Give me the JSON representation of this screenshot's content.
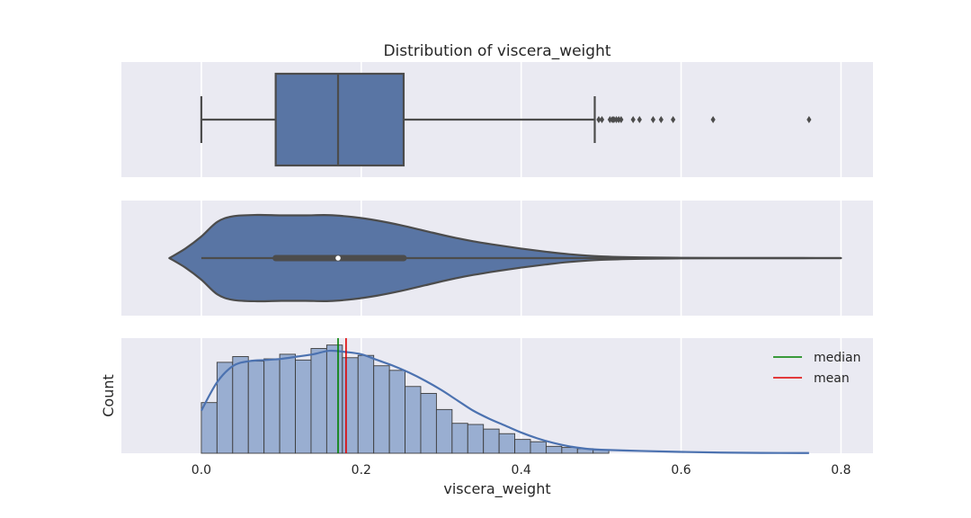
{
  "chart_data": {
    "type": "distribution",
    "title": "Distribution of viscera_weight",
    "xlabel": "viscera_weight",
    "ylabel": "Count",
    "xlim": [
      -0.1,
      0.84
    ],
    "x_ticks": [
      0.0,
      0.2,
      0.4,
      0.6,
      0.8
    ],
    "x_tick_labels": [
      "0.0",
      "0.2",
      "0.4",
      "0.6",
      "0.8"
    ],
    "grid": true,
    "colors": {
      "background": "#eaeaf2",
      "grid": "#ffffff",
      "box_fill": "#5975a4",
      "line": "#4c4c4c",
      "hist_fill": "#99aed1",
      "hist_edge": "#3c3c3c",
      "kde": "#4c72b0",
      "median": "#008000",
      "mean": "#e00000"
    },
    "boxplot": {
      "min": 0.0,
      "q1": 0.093,
      "median": 0.171,
      "q3": 0.253,
      "max_whisker": 0.492,
      "outliers": [
        0.497,
        0.501,
        0.511,
        0.514,
        0.516,
        0.519,
        0.522,
        0.525,
        0.54,
        0.548,
        0.565,
        0.575,
        0.59,
        0.64,
        0.76
      ]
    },
    "violin": {
      "q1": 0.093,
      "median": 0.171,
      "q3": 0.253,
      "whisker_low": 0.0,
      "whisker_high": 0.8,
      "density_x": [
        -0.04,
        -0.02,
        0.0,
        0.02,
        0.04,
        0.07,
        0.1,
        0.13,
        0.16,
        0.19,
        0.22,
        0.25,
        0.28,
        0.31,
        0.34,
        0.37,
        0.4,
        0.43,
        0.46,
        0.5,
        0.55,
        0.6,
        0.65,
        0.7,
        0.75,
        0.8
      ],
      "density": [
        0.0,
        0.22,
        0.5,
        0.84,
        0.97,
        1.0,
        0.99,
        0.99,
        0.995,
        0.95,
        0.87,
        0.76,
        0.63,
        0.5,
        0.39,
        0.3,
        0.22,
        0.15,
        0.09,
        0.04,
        0.016,
        0.007,
        0.004,
        0.003,
        0.002,
        0.0
      ]
    },
    "histogram": {
      "bin_width": 0.0196,
      "bin_start": 0.0,
      "counts": [
        44,
        79,
        84,
        80,
        82,
        86,
        81,
        91,
        94,
        83,
        85,
        76,
        72,
        58,
        52,
        38,
        26,
        25,
        21,
        17,
        12,
        10,
        6,
        5,
        4,
        3
      ],
      "kde_x": [
        0.0,
        0.02,
        0.04,
        0.06,
        0.08,
        0.1,
        0.12,
        0.14,
        0.16,
        0.18,
        0.2,
        0.22,
        0.24,
        0.26,
        0.28,
        0.3,
        0.32,
        0.34,
        0.36,
        0.38,
        0.4,
        0.42,
        0.44,
        0.46,
        0.48,
        0.5,
        0.55,
        0.6,
        0.65,
        0.7,
        0.76
      ],
      "kde": [
        37,
        62,
        76,
        80,
        81,
        82,
        84,
        86,
        89,
        88,
        86,
        81,
        76,
        70,
        63,
        55,
        46,
        37,
        30,
        24,
        18,
        13,
        9,
        6,
        4,
        3,
        2,
        1.2,
        0.6,
        0.3,
        0.2
      ],
      "ylim": [
        0,
        100
      ],
      "median": 0.171,
      "mean": 0.181
    },
    "legend": {
      "position": "upper right",
      "entries": [
        {
          "label": "median",
          "color": "#008000"
        },
        {
          "label": "mean",
          "color": "#e00000"
        }
      ]
    }
  }
}
